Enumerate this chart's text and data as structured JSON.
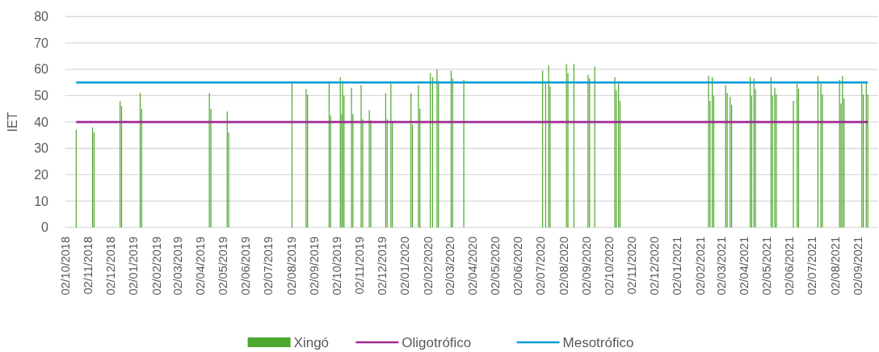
{
  "chart_data": {
    "type": "bar",
    "ylabel": "IET",
    "legend": "bottom",
    "grid": "y",
    "xlim": [
      "2018-10-02",
      "2021-09-29"
    ],
    "xticks": [
      {
        "value": "2018-10-02",
        "label": "02/10/2018"
      },
      {
        "value": "2018-11-02",
        "label": "02/11/2018"
      },
      {
        "value": "2018-12-02",
        "label": "02/12/2018"
      },
      {
        "value": "2019-01-02",
        "label": "02/01/2019"
      },
      {
        "value": "2019-02-02",
        "label": "02/02/2019"
      },
      {
        "value": "2019-03-02",
        "label": "02/03/2019"
      },
      {
        "value": "2019-04-02",
        "label": "02/04/2019"
      },
      {
        "value": "2019-05-02",
        "label": "02/05/2019"
      },
      {
        "value": "2019-06-02",
        "label": "02/06/2019"
      },
      {
        "value": "2019-07-02",
        "label": "02/07/2019"
      },
      {
        "value": "2019-08-02",
        "label": "02/08/2019"
      },
      {
        "value": "2019-09-02",
        "label": "02/09/2019"
      },
      {
        "value": "2019-10-02",
        "label": "02/10/2019"
      },
      {
        "value": "2019-11-02",
        "label": "02/11/2019"
      },
      {
        "value": "2019-12-02",
        "label": "02/12/2019"
      },
      {
        "value": "2020-01-02",
        "label": "02/01/2020"
      },
      {
        "value": "2020-02-02",
        "label": "02/02/2020"
      },
      {
        "value": "2020-03-02",
        "label": "02/03/2020"
      },
      {
        "value": "2020-04-02",
        "label": "02/04/2020"
      },
      {
        "value": "2020-05-02",
        "label": "02/05/2020"
      },
      {
        "value": "2020-06-02",
        "label": "02/06/2020"
      },
      {
        "value": "2020-07-02",
        "label": "02/07/2020"
      },
      {
        "value": "2020-08-02",
        "label": "02/08/2020"
      },
      {
        "value": "2020-09-02",
        "label": "02/09/2020"
      },
      {
        "value": "2020-10-02",
        "label": "02/10/2020"
      },
      {
        "value": "2020-11-02",
        "label": "02/11/2020"
      },
      {
        "value": "2020-12-02",
        "label": "02/12/2020"
      },
      {
        "value": "2021-01-02",
        "label": "02/01/2021"
      },
      {
        "value": "2021-02-02",
        "label": "02/02/2021"
      },
      {
        "value": "2021-03-02",
        "label": "02/03/2021"
      },
      {
        "value": "2021-04-02",
        "label": "02/04/2021"
      },
      {
        "value": "2021-05-02",
        "label": "02/05/2021"
      },
      {
        "value": "2021-06-02",
        "label": "02/06/2021"
      },
      {
        "value": "2021-07-02",
        "label": "02/07/2021"
      },
      {
        "value": "2021-08-02",
        "label": "02/08/2021"
      },
      {
        "value": "2021-09-02",
        "label": "02/09/2021"
      }
    ],
    "ylim": [
      0,
      80
    ],
    "yticks": [
      0,
      10,
      20,
      30,
      40,
      50,
      60,
      70,
      80
    ],
    "series": [
      {
        "name": "Xingó",
        "color": "#4ea72e",
        "x": [
          "2018-10-17",
          "2018-11-08",
          "2018-11-10",
          "2018-12-15",
          "2018-12-17",
          "2019-01-11",
          "2019-01-13",
          "2019-04-14",
          "2019-04-16",
          "2019-05-08",
          "2019-05-10",
          "2019-08-03",
          "2019-08-22",
          "2019-08-24",
          "2019-09-22",
          "2019-09-24",
          "2019-10-07",
          "2019-10-09",
          "2019-10-10",
          "2019-10-12",
          "2019-10-22",
          "2019-10-24",
          "2019-11-04",
          "2019-11-06",
          "2019-11-15",
          "2019-11-17",
          "2019-12-07",
          "2019-12-09",
          "2019-12-14",
          "2019-12-16",
          "2020-01-10",
          "2020-01-12",
          "2020-01-20",
          "2020-01-22",
          "2020-02-05",
          "2020-02-08",
          "2020-02-14",
          "2020-02-16",
          "2020-03-04",
          "2020-03-06",
          "2020-03-21",
          "2020-07-05",
          "2020-07-09",
          "2020-07-13",
          "2020-07-15",
          "2020-08-06",
          "2020-08-08",
          "2020-08-16",
          "2020-09-04",
          "2020-09-06",
          "2020-09-13",
          "2020-10-10",
          "2020-10-12",
          "2020-10-15",
          "2020-10-17",
          "2021-02-13",
          "2021-02-15",
          "2021-02-18",
          "2021-02-20",
          "2021-03-08",
          "2021-03-10",
          "2021-03-14",
          "2021-03-16",
          "2021-04-10",
          "2021-04-12",
          "2021-04-15",
          "2021-04-17",
          "2021-05-08",
          "2021-05-10",
          "2021-05-13",
          "2021-05-15",
          "2021-06-07",
          "2021-06-12",
          "2021-06-14",
          "2021-07-10",
          "2021-07-14",
          "2021-07-16",
          "2021-08-08",
          "2021-08-10",
          "2021-08-12",
          "2021-08-14",
          "2021-09-07",
          "2021-09-09",
          "2021-09-13",
          "2021-09-15"
        ],
        "values": [
          37,
          38,
          36,
          48,
          46,
          51,
          45,
          51,
          45,
          44,
          36,
          55,
          52.5,
          50.5,
          55,
          42.5,
          57,
          43,
          55.5,
          50,
          53,
          43,
          54,
          41,
          44.5,
          40.5,
          51,
          41,
          54.5,
          40,
          51,
          39,
          54,
          45,
          58.5,
          57,
          60,
          55.5,
          59.5,
          56.5,
          56,
          59.5,
          54.5,
          61.5,
          53.5,
          62,
          58.5,
          62,
          58,
          56.5,
          61,
          57,
          52,
          54.5,
          48,
          57.5,
          48,
          57,
          50,
          54,
          51,
          49.5,
          46.5,
          57,
          50,
          56.5,
          52.5,
          57,
          50,
          53,
          50.5,
          48,
          54.5,
          52.5,
          57.5,
          54.5,
          50.5,
          56,
          47,
          57.5,
          49,
          54.5,
          50.5,
          55,
          50.5
        ]
      },
      {
        "name": "Oligotrófico",
        "type": "line",
        "color": "#a02b93",
        "x": [
          "2018-10-17",
          "2021-09-15"
        ],
        "values": [
          40,
          40
        ]
      },
      {
        "name": "Mesotrófico",
        "type": "line",
        "color": "#0f9ed5",
        "x": [
          "2018-10-17",
          "2021-09-15"
        ],
        "values": [
          55,
          55
        ]
      }
    ]
  }
}
